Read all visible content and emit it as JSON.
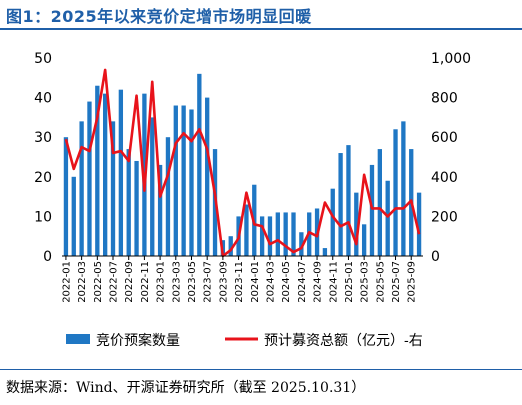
{
  "header": {
    "title": "图1：2025年以来竞价定增市场明显回暖"
  },
  "footer": {
    "source": "数据来源：Wind、开源证券研究所（截至 2025.10.31）"
  },
  "colors": {
    "bar": "#1f77c4",
    "line": "#e8131b",
    "title": "#1f5fa8"
  },
  "chart_data": {
    "type": "bar",
    "title": "",
    "xlabel": "",
    "ylabel": "",
    "ylim": [
      0,
      50
    ],
    "y2lim": [
      0,
      1000
    ],
    "y_ticks": [
      "0",
      "10",
      "20",
      "30",
      "40",
      "50"
    ],
    "y2_ticks": [
      "0",
      "200",
      "400",
      "600",
      "800",
      "1,000"
    ],
    "x_tick_labels": [
      "2022-01",
      "2022-03",
      "2022-05",
      "2022-07",
      "2022-09",
      "2022-11",
      "2023-01",
      "2023-03",
      "2023-05",
      "2023-07",
      "2023-09",
      "2023-11",
      "2024-01",
      "2024-03",
      "2024-05",
      "2024-07",
      "2024-09",
      "2024-11",
      "2025-01",
      "2025-03",
      "2025-05",
      "2025-07",
      "2025-09"
    ],
    "categories": [
      "2022-01",
      "2022-02",
      "2022-03",
      "2022-04",
      "2022-05",
      "2022-06",
      "2022-07",
      "2022-08",
      "2022-09",
      "2022-10",
      "2022-11",
      "2022-12",
      "2023-01",
      "2023-02",
      "2023-03",
      "2023-04",
      "2023-05",
      "2023-06",
      "2023-07",
      "2023-08",
      "2023-09",
      "2023-10",
      "2023-11",
      "2023-12",
      "2024-01",
      "2024-02",
      "2024-03",
      "2024-04",
      "2024-05",
      "2024-06",
      "2024-07",
      "2024-08",
      "2024-09",
      "2024-10",
      "2024-11",
      "2024-12",
      "2025-01",
      "2025-02",
      "2025-03",
      "2025-04",
      "2025-05",
      "2025-06",
      "2025-07",
      "2025-08",
      "2025-09",
      "2025-10"
    ],
    "series": [
      {
        "name": "竞价预案数量",
        "type": "bar",
        "axis": "left",
        "values": [
          30,
          20,
          34,
          39,
          43,
          41,
          34,
          42,
          27,
          24,
          41,
          35,
          23,
          30,
          38,
          38,
          37,
          46,
          40,
          27,
          4,
          5,
          10,
          13,
          18,
          10,
          10,
          11,
          11,
          11,
          6,
          11,
          12,
          2,
          17,
          26,
          28,
          16,
          8,
          23,
          27,
          19,
          32,
          34,
          27,
          16
        ]
      },
      {
        "name": "预计募资总额（亿元）-右",
        "type": "line",
        "axis": "right",
        "values": [
          590,
          440,
          550,
          530,
          700,
          940,
          520,
          530,
          480,
          810,
          330,
          880,
          300,
          410,
          570,
          620,
          580,
          640,
          540,
          310,
          0,
          30,
          90,
          320,
          160,
          150,
          60,
          80,
          50,
          20,
          40,
          120,
          100,
          270,
          200,
          150,
          170,
          60,
          410,
          240,
          240,
          200,
          240,
          240,
          280,
          110
        ]
      }
    ],
    "legend": {
      "position": "bottom"
    },
    "grid": false
  }
}
